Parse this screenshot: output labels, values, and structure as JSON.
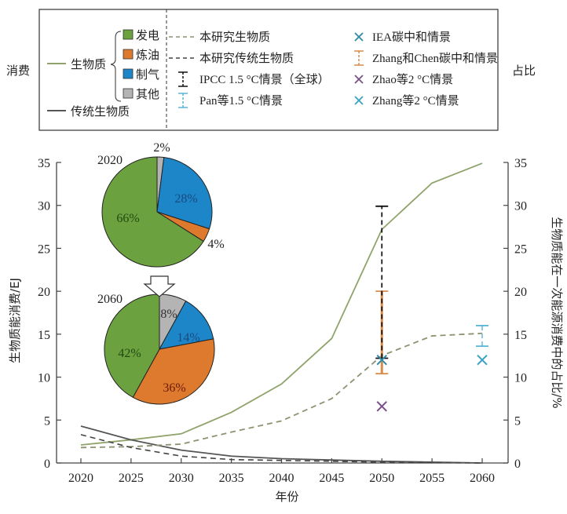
{
  "legend": {
    "left_label": "消费",
    "right_label": "占比",
    "biomass_label": "生物质",
    "traditional_label": "传统生物质",
    "categories": [
      {
        "label": "发电",
        "color": "#6ca13f"
      },
      {
        "label": "炼油",
        "color": "#de7a2e"
      },
      {
        "label": "制气",
        "color": "#1c86c8"
      },
      {
        "label": "其他",
        "color": "#b4b4b4"
      }
    ],
    "col2": [
      {
        "label": "本研究生物质",
        "kind": "dash-green"
      },
      {
        "label": "本研究传统生物质",
        "kind": "dash-dark"
      },
      {
        "label": "IPCC 1.5 °C情景（全球）",
        "kind": "errbar-black"
      },
      {
        "label": "Pan等1.5 °C情景",
        "kind": "errbar-lightblue"
      }
    ],
    "col3": [
      {
        "label": "IEA碳中和情景",
        "kind": "x-teal"
      },
      {
        "label": "Zhang和Chen碳中和情景",
        "kind": "errbar-orange"
      },
      {
        "label": "Zhao等2 °C情景",
        "kind": "x-purple"
      },
      {
        "label": "Zhang等2 °C情景",
        "kind": "x-lightteal"
      }
    ]
  },
  "colors": {
    "biomass": "#8fa36a",
    "traditional": "#555555",
    "dash_biomass": "#8a9470",
    "dash_traditional": "#444444",
    "ipcc": "#111111",
    "pan": "#5ab4d6",
    "iea": "#2f8aa8",
    "zhang_chen": "#d88b4a",
    "zhao": "#7a4f8a",
    "zhang2": "#3aa3c0"
  },
  "chart_data": {
    "type": "line",
    "xlabel": "年份",
    "ylabel": "生物质能消费/EJ",
    "ylabel_right": "生物质能在一次能源消费中的占比/%",
    "x": [
      2020,
      2025,
      2030,
      2035,
      2040,
      2045,
      2050,
      2055,
      2060
    ],
    "xlim": [
      2020,
      2060
    ],
    "ylim": [
      0,
      35
    ],
    "ylim_right": [
      0,
      35
    ],
    "xticks": [
      "2020",
      "2025",
      "2030",
      "2035",
      "2040",
      "2045",
      "2050",
      "2055",
      "2060"
    ],
    "yticks": [
      "0",
      "5",
      "10",
      "15",
      "20",
      "25",
      "30",
      "35"
    ],
    "series": [
      {
        "name": "生物质 消费",
        "axis": "left",
        "style": "solid-green",
        "values": [
          2.1,
          2.7,
          3.4,
          5.9,
          9.2,
          14.5,
          27.2,
          32.6,
          34.9
        ]
      },
      {
        "name": "传统生物质 消费",
        "axis": "left",
        "style": "solid-dark",
        "values": [
          4.3,
          2.7,
          1.5,
          0.8,
          0.5,
          0.35,
          0.2,
          0.1,
          0.0
        ]
      },
      {
        "name": "本研究生物质",
        "axis": "right",
        "style": "dash-green",
        "values": [
          1.8,
          1.9,
          2.2,
          3.6,
          4.9,
          7.5,
          12.5,
          14.8,
          15.1
        ]
      },
      {
        "name": "本研究传统生物质",
        "axis": "right",
        "style": "dash-dark",
        "values": [
          3.3,
          1.8,
          0.8,
          0.4,
          0.3,
          0.2,
          0.1,
          0.05,
          0.0
        ]
      }
    ],
    "errorbars": [
      {
        "name": "IPCC 1.5 °C情景（全球）",
        "x": 2050,
        "low": 12.2,
        "high": 29.9
      },
      {
        "name": "Zhang和Chen碳中和情景",
        "x": 2050,
        "low": 10.4,
        "high": 20.0
      },
      {
        "name": "Pan等1.5 °C情景",
        "x": 2060,
        "low": 13.6,
        "high": 16.0
      }
    ],
    "points": [
      {
        "name": "IEA碳中和情景",
        "x": 2050,
        "y": 12.0
      },
      {
        "name": "Zhao等2 °C情景",
        "x": 2050,
        "y": 6.6
      },
      {
        "name": "Zhang等2 °C情景",
        "x": 2060,
        "y": 12.0
      }
    ],
    "pies": [
      {
        "year": "2020",
        "slices": [
          {
            "label": "其他",
            "value": 2,
            "text": "2%"
          },
          {
            "label": "制气",
            "value": 28,
            "text": "28%"
          },
          {
            "label": "炼油",
            "value": 4,
            "text": "4%"
          },
          {
            "label": "发电",
            "value": 66,
            "text": "66%"
          }
        ]
      },
      {
        "year": "2060",
        "slices": [
          {
            "label": "其他",
            "value": 8,
            "text": "8%"
          },
          {
            "label": "制气",
            "value": 14,
            "text": "14%"
          },
          {
            "label": "炼油",
            "value": 36,
            "text": "36%"
          },
          {
            "label": "发电",
            "value": 42,
            "text": "42%"
          }
        ]
      }
    ]
  }
}
